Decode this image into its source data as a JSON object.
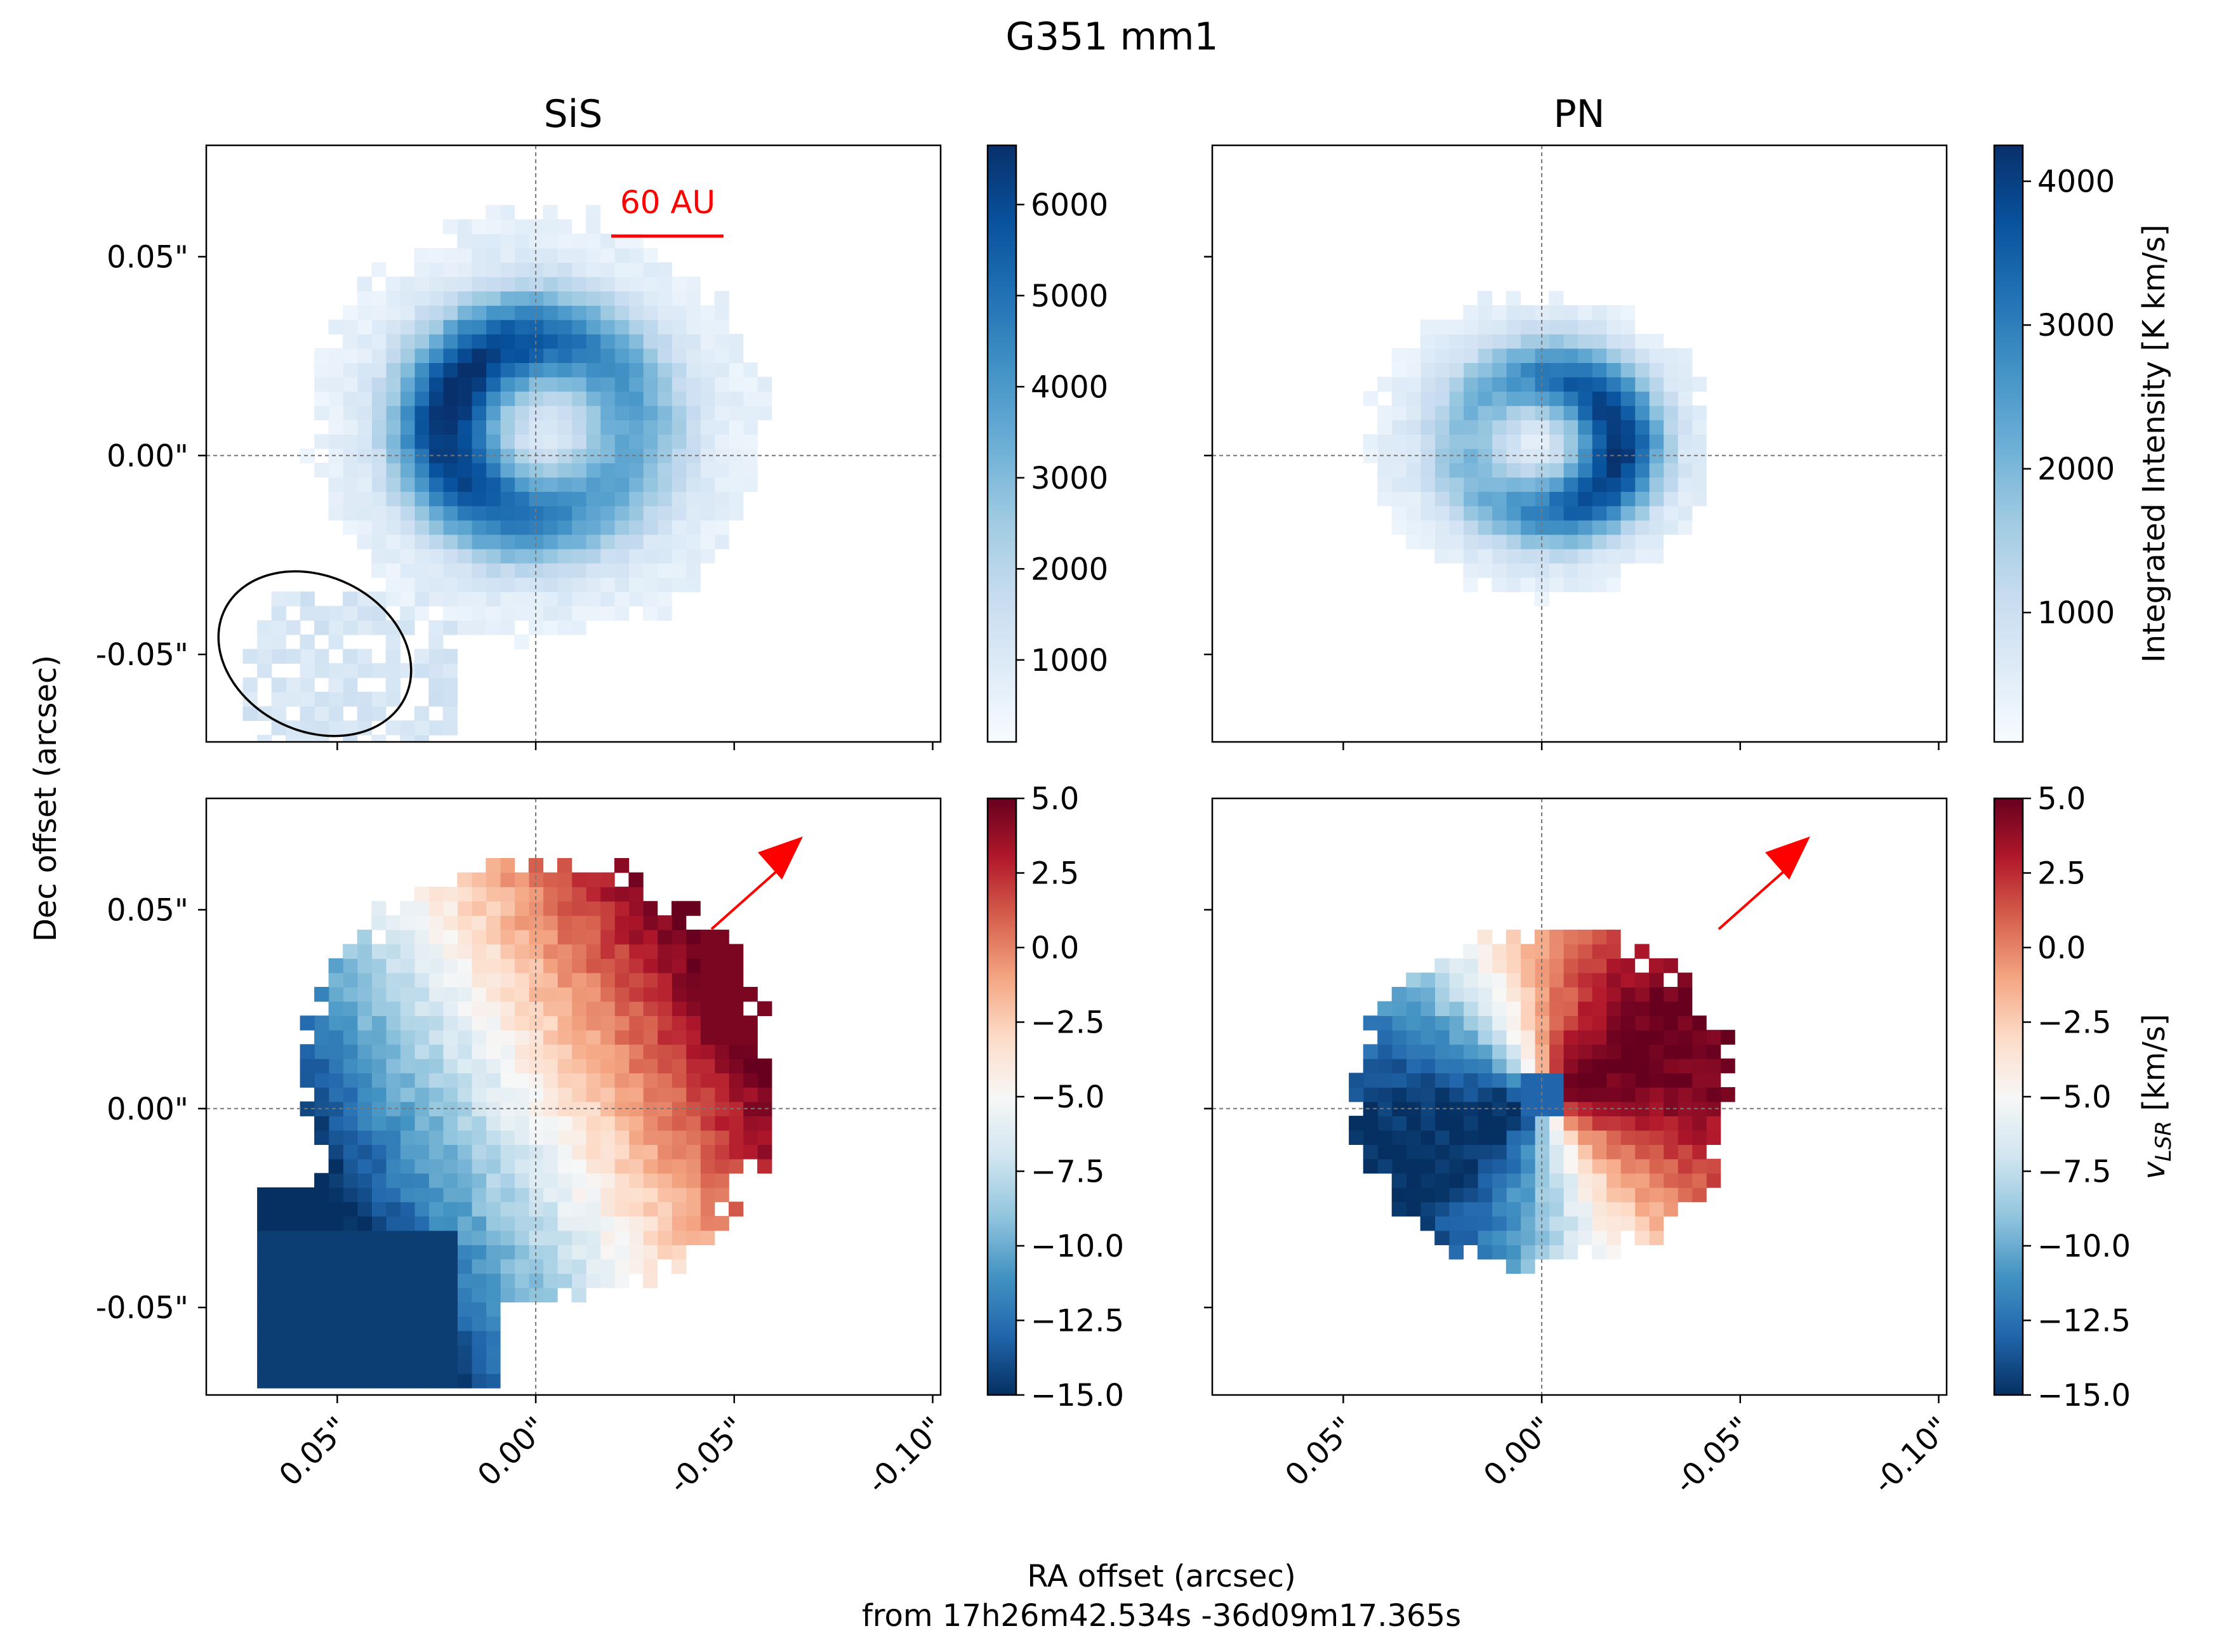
{
  "figure": {
    "suptitle": "G351 mm1",
    "xlabel_line1": "RA offset (arcsec)",
    "xlabel_line2": "from 17h26m42.534s -36d09m17.365s",
    "ylabel": "Dec offset (arcsec)"
  },
  "panels": {
    "sis_title": "SiS",
    "pn_title": "PN",
    "scalebar_label": "60 AU"
  },
  "axes": {
    "x_ticks": [
      "0.05\"",
      "0.00\"",
      "-0.05\"",
      "-0.10\""
    ],
    "y_ticks": [
      "0.05\"",
      "0.00\"",
      "-0.05\""
    ]
  },
  "colorbars": {
    "intensity_label": "Integrated Intensity [K km/s]",
    "velocity_label_main": "v",
    "velocity_label_sub": "LSR",
    "velocity_label_unit": " [km/s]",
    "sis_intensity_ticks": [
      "1000",
      "2000",
      "3000",
      "4000",
      "5000",
      "6000"
    ],
    "pn_intensity_ticks": [
      "1000",
      "2000",
      "3000",
      "4000"
    ],
    "velocity_ticks": [
      "5.0",
      "2.5",
      "0.0",
      "−2.5",
      "−5.0",
      "−7.5",
      "−10.0",
      "−12.5",
      "−15.0"
    ]
  },
  "chart_data": [
    {
      "type": "heatmap",
      "title": "SiS",
      "quantity": "Integrated Intensity [K km/s]",
      "colormap": "Blues",
      "color_range": [
        100,
        6650
      ],
      "xlim": [
        0.083,
        -0.102
      ],
      "ylim": [
        -0.072,
        0.078
      ],
      "morphology": "ring, peak intensity ~6500 K km/s near (0.00\", 0.02\"), central hole ~2000 K km/s",
      "beam_ellipse": {
        "center": [
          0.061,
          -0.05
        ],
        "major": 0.055,
        "minor": 0.04,
        "pa_deg": -35
      },
      "scale_bar": {
        "label": "60 AU"
      }
    },
    {
      "type": "heatmap",
      "title": "PN",
      "quantity": "Integrated Intensity [K km/s]",
      "colormap": "Blues",
      "color_range": [
        100,
        4250
      ],
      "xlim": [
        0.083,
        -0.102
      ],
      "ylim": [
        -0.072,
        0.078
      ],
      "morphology": "ring, peak intensity ~4200 K km/s near (0.015\", 0.00\")"
    },
    {
      "type": "heatmap",
      "title": "SiS",
      "quantity": "v_LSR [km/s]",
      "colormap": "RdBu_r",
      "color_range": [
        -15.0,
        5.0
      ],
      "xlim": [
        0.083,
        -0.102
      ],
      "ylim": [
        -0.072,
        0.078
      ],
      "arrow": "red arrow pointing to upper right",
      "morphology": "redshifted (~0 to 5 km/s) on the north-west (right/upper), blueshifted (~-10 to -15 km/s) on the south-east (left/lower)"
    },
    {
      "type": "heatmap",
      "title": "PN",
      "quantity": "v_LSR [km/s]",
      "colormap": "RdBu_r",
      "color_range": [
        -15.0,
        5.0
      ],
      "xlim": [
        0.083,
        -0.102
      ],
      "ylim": [
        -0.072,
        0.078
      ],
      "arrow": "red arrow pointing to upper right",
      "morphology": "redshifted (~0 to 5 km/s) on the west (right), blueshifted (~-10 to -13 km/s) on the east (left)"
    }
  ]
}
